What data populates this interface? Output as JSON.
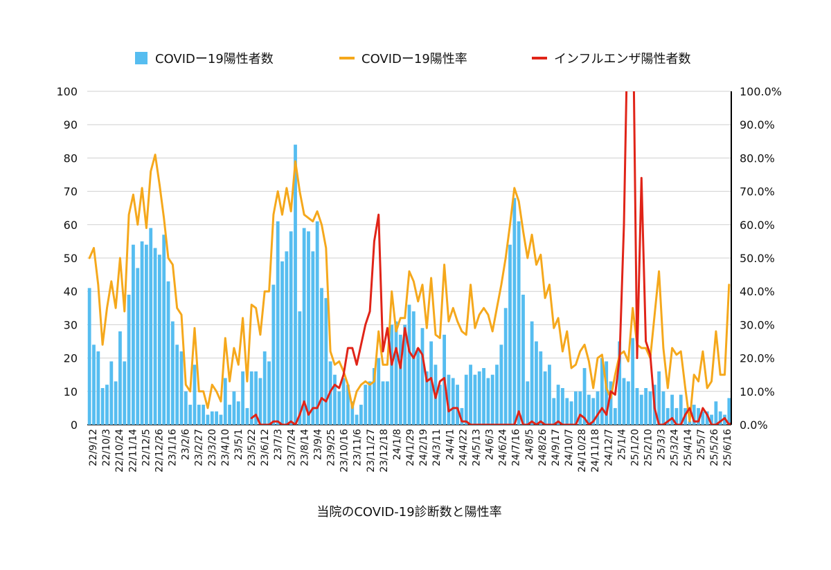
{
  "chart_data": {
    "type": "bar",
    "title": "当院のCOVID-19診断数と陽性率",
    "xlabel": "",
    "ylabel": "",
    "ylim": [
      0,
      100
    ],
    "y2lim": [
      0,
      100
    ],
    "yticks": [
      "0",
      "10",
      "20",
      "30",
      "40",
      "50",
      "60",
      "70",
      "80",
      "90",
      "100"
    ],
    "y2ticks": [
      "0.0%",
      "10.0%",
      "20.0%",
      "30.0%",
      "40.0%",
      "50.0%",
      "60.0%",
      "70.0%",
      "80.0%",
      "90.0%",
      "100.0%"
    ],
    "legend_position": "top",
    "x_tick_labels": [
      "22/9/12",
      "22/10/3",
      "22/10/24",
      "22/11/14",
      "22/12/5",
      "22/12/26",
      "23/1/16",
      "23/2/6",
      "23/2/27",
      "23/3/20",
      "23/4/10",
      "23/5/1",
      "23/5/22",
      "23/6/12",
      "23/7/3",
      "23/7/24",
      "23/8/14",
      "23/9/4",
      "23/9/25",
      "23/10/16",
      "23/11/6",
      "23/11/27",
      "23/12/18",
      "24/1/8",
      "24/1/29",
      "24/2/19",
      "24/3/11",
      "24/4/1",
      "24/4/22",
      "24/5/13",
      "24/6/3",
      "24/6/24",
      "24/7/16",
      "24/8/5",
      "24/8/26",
      "24/9/17",
      "24/10/7",
      "24/10/28",
      "24/11/18",
      "24/12/7",
      "25/1/4",
      "25/1/20",
      "25/2/10",
      "25/3/3",
      "25/3/24",
      "25/4/14",
      "25/5/7",
      "25/5/26",
      "25/6/16"
    ],
    "series": [
      {
        "name": "COVIDー19陽性者数",
        "type": "bar",
        "axis": "left",
        "color": "#56bdf0",
        "values": [
          41,
          24,
          22,
          11,
          12,
          19,
          13,
          28,
          19,
          39,
          54,
          47,
          55,
          54,
          59,
          53,
          51,
          57,
          43,
          31,
          24,
          22,
          10,
          6,
          18,
          6,
          6,
          3,
          4,
          4,
          3,
          14,
          6,
          10,
          7,
          16,
          5,
          16,
          16,
          14,
          22,
          19,
          42,
          61,
          49,
          52,
          58,
          84,
          34,
          59,
          58,
          52,
          61,
          41,
          38,
          19,
          15,
          10,
          14,
          12,
          7,
          3,
          6,
          12,
          13,
          17,
          20,
          13,
          13,
          30,
          31,
          27,
          30,
          36,
          34,
          23,
          29,
          16,
          25,
          18,
          12,
          27,
          15,
          14,
          12,
          5,
          15,
          18,
          15,
          16,
          17,
          14,
          15,
          18,
          24,
          35,
          54,
          68,
          61,
          39,
          13,
          31,
          25,
          22,
          16,
          18,
          8,
          12,
          11,
          8,
          7,
          10,
          10,
          17,
          9,
          8,
          10,
          20,
          19,
          13,
          5,
          25,
          14,
          13,
          26,
          11,
          9,
          11,
          10,
          12,
          16,
          10,
          5,
          9,
          5,
          9,
          5,
          1,
          6,
          5,
          4,
          4,
          3,
          7,
          4,
          3,
          8
        ]
      },
      {
        "name": "COVIDー19陽性率",
        "type": "line",
        "axis": "right",
        "unit": "%",
        "color": "#f5a81c",
        "values": [
          50,
          53,
          42,
          24,
          35,
          43,
          35,
          50,
          34,
          63,
          69,
          60,
          71,
          59,
          76,
          81,
          72,
          62,
          50,
          48,
          35,
          33,
          12,
          10,
          29,
          10,
          10,
          5,
          12,
          10,
          7,
          26,
          13,
          23,
          18,
          32,
          13,
          36,
          35,
          27,
          40,
          40,
          63,
          70,
          63,
          71,
          64,
          79,
          70,
          63,
          62,
          61,
          64,
          60,
          53,
          22,
          18,
          19,
          16,
          12,
          5,
          10,
          12,
          13,
          12,
          13,
          28,
          18,
          18,
          40,
          28,
          32,
          32,
          46,
          43,
          37,
          42,
          29,
          44,
          27,
          26,
          48,
          31,
          35,
          31,
          28,
          27,
          42,
          29,
          33,
          35,
          33,
          28,
          35,
          42,
          50,
          60,
          71,
          67,
          58,
          50,
          57,
          48,
          51,
          38,
          42,
          29,
          32,
          22,
          28,
          17,
          18,
          22,
          24,
          19,
          11,
          20,
          21,
          11,
          8,
          15,
          21,
          22,
          19,
          35,
          24,
          23,
          23,
          20,
          33,
          46,
          23,
          11,
          23,
          21,
          22,
          11,
          1,
          15,
          13,
          22,
          11,
          13,
          28,
          15,
          15,
          42
        ]
      },
      {
        "name": "インフルエンザ陽性者数",
        "type": "line",
        "axis": "left",
        "color": "#e02418",
        "values": [
          null,
          null,
          null,
          null,
          null,
          null,
          null,
          null,
          null,
          null,
          null,
          null,
          null,
          null,
          null,
          null,
          null,
          null,
          null,
          null,
          null,
          null,
          null,
          null,
          null,
          null,
          null,
          null,
          null,
          null,
          null,
          null,
          null,
          null,
          null,
          null,
          null,
          2,
          3,
          0,
          0,
          0,
          1,
          1,
          0,
          0,
          1,
          0,
          3,
          7,
          3,
          5,
          5,
          8,
          7,
          10,
          12,
          11,
          15,
          23,
          23,
          18,
          24,
          30,
          34,
          55,
          63,
          22,
          29,
          18,
          23,
          17,
          29,
          22,
          20,
          23,
          21,
          13,
          14,
          8,
          13,
          14,
          4,
          5,
          5,
          1,
          1,
          0,
          0,
          0,
          0,
          0,
          0,
          0,
          0,
          0,
          0,
          0,
          4,
          0,
          0,
          1,
          0,
          1,
          0,
          0,
          0,
          1,
          0,
          0,
          0,
          0,
          3,
          2,
          0,
          1,
          3,
          5,
          3,
          10,
          9,
          20,
          60,
          130,
          130,
          20,
          74,
          25,
          21,
          5,
          0,
          0,
          1,
          2,
          0,
          0,
          3,
          5,
          1,
          1,
          5,
          3,
          0,
          0,
          1,
          2,
          0,
          1,
          0,
          0,
          0,
          0,
          2
        ]
      }
    ]
  }
}
